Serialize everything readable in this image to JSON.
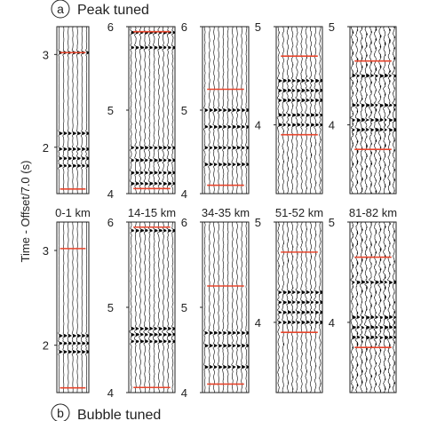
{
  "figure": {
    "panel_a": {
      "letter": "a",
      "title": "Peak tuned"
    },
    "panel_b": {
      "letter": "b",
      "title": "Bubble tuned"
    },
    "ylabel": "Time - Offset/7.0 (s)"
  },
  "colors": {
    "trace": "#000000",
    "marker": "#e8452c",
    "frame": "#222222"
  },
  "chart_data": {
    "type": "seismic-trace-gathers",
    "ylabel": "Time - Offset/7.0 (s)",
    "columns": [
      {
        "label": "0-1 km",
        "y_axis": {
          "top": 3.3,
          "bottom": 1.5,
          "ticks": [
            3,
            2
          ]
        },
        "density": 0.15,
        "markers": [
          3.02,
          1.55
        ],
        "rows": [
          {
            "window": [
              1.5,
              3.3
            ],
            "strong_bands": [
              3.02,
              2.15,
              1.98,
              1.88,
              1.8
            ]
          },
          {
            "window": [
              1.5,
              3.3
            ],
            "strong_bands": [
              2.1,
              2.02,
              1.93
            ]
          }
        ]
      },
      {
        "label": "14-15 km",
        "y_axis": {
          "top": 6,
          "bottom": 4,
          "ticks": [
            6,
            5,
            4
          ]
        },
        "density": 0.35,
        "markers": [
          5.94,
          4.06
        ],
        "rows": [
          {
            "window": [
              4,
              6
            ],
            "strong_bands": [
              5.93,
              5.75,
              4.55,
              4.4,
              4.25,
              4.12
            ]
          },
          {
            "window": [
              4,
              6
            ],
            "strong_bands": [
              5.9,
              4.75,
              4.68,
              4.6
            ]
          }
        ]
      },
      {
        "label": "34-35 km",
        "y_axis": {
          "top": 6,
          "bottom": 4,
          "ticks": [
            6,
            5,
            4
          ]
        },
        "density": 0.3,
        "markers": [
          5.25,
          4.1
        ],
        "rows": [
          {
            "window": [
              4,
              6
            ],
            "strong_bands": [
              5.0,
              4.8,
              4.55,
              4.35
            ]
          },
          {
            "window": [
              4,
              6
            ],
            "strong_bands": [
              4.7,
              4.55,
              4.3
            ]
          }
        ]
      },
      {
        "label": "51-52 km",
        "y_axis": {
          "top": 5,
          "bottom": 3.3,
          "ticks": [
            5,
            4
          ]
        },
        "density": 0.5,
        "markers": [
          4.7,
          3.9
        ],
        "rows": [
          {
            "window": [
              3.3,
              5
            ],
            "strong_bands": [
              4.45,
              4.35,
              4.25,
              4.1,
              4.0
            ]
          },
          {
            "window": [
              3.3,
              5
            ],
            "strong_bands": [
              4.3,
              4.2,
              4.1,
              4.0
            ]
          }
        ]
      },
      {
        "label": "81-82 km",
        "y_axis": {
          "top": 5,
          "bottom": 3.3,
          "ticks": [
            5,
            4
          ]
        },
        "density": 0.8,
        "markers": [
          4.65,
          3.75
        ],
        "rows": [
          {
            "window": [
              3.3,
              5
            ],
            "strong_bands": [
              4.5,
              4.2,
              4.05,
              3.95
            ]
          },
          {
            "window": [
              3.3,
              5
            ],
            "strong_bands": [
              4.4,
              4.05,
              3.95,
              3.85
            ]
          }
        ]
      }
    ]
  }
}
